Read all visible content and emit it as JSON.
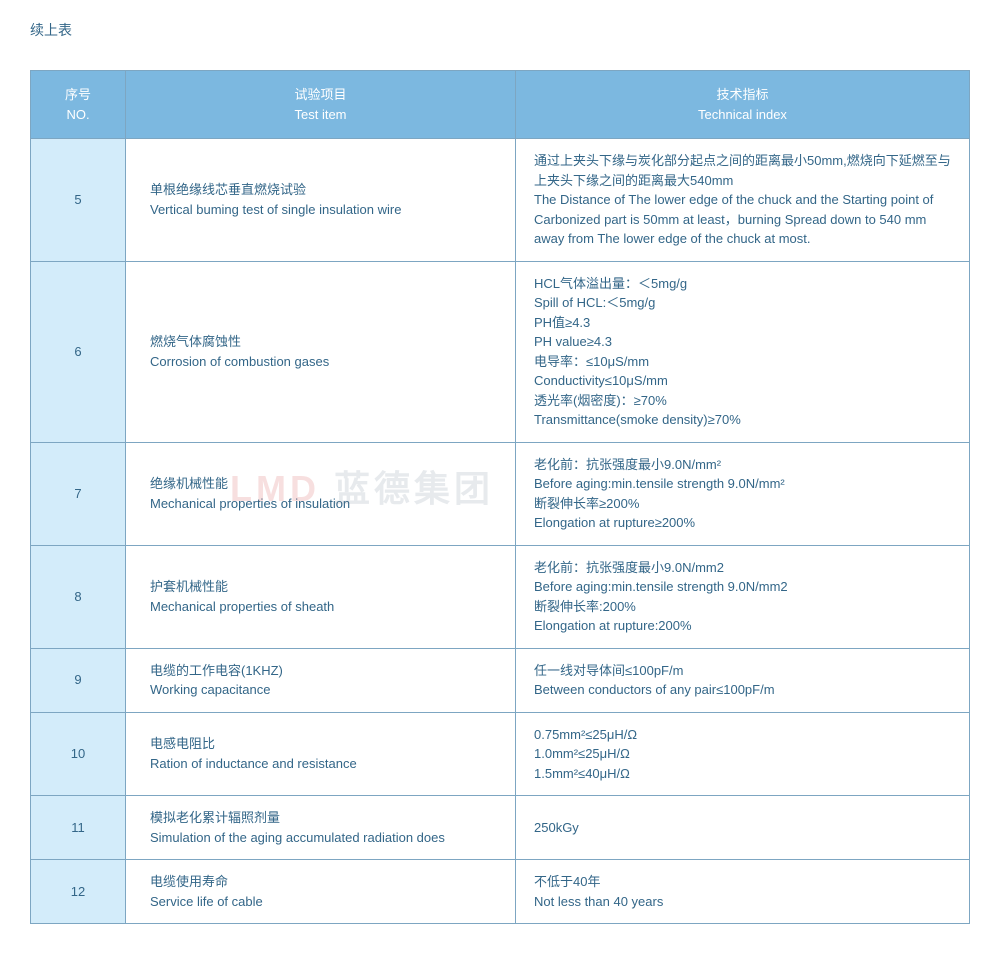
{
  "caption": "续上表",
  "watermark_red": "LMD",
  "watermark_gray": "蓝德集团",
  "headers": {
    "no_cn": "序号",
    "no_en": "NO.",
    "item_cn": "试验项目",
    "item_en": "Test item",
    "index_cn": "技术指标",
    "index_en": "Technical index"
  },
  "rows": [
    {
      "no": "5",
      "item": "单根绝缘线芯垂直燃烧试验\nVertical buming test of single insulation wire",
      "index": "通过上夹头下缘与炭化部分起点之间的距离最小50mm,燃烧向下延燃至与上夹头下缘之间的距离最大540mm\nThe Distance of The lower edge of the chuck and the Starting point of Carbonized part is 50mm at least，burning Spread down to 540 mm away from The lower edge of the chuck at most."
    },
    {
      "no": "6",
      "item": "燃烧气体腐蚀性\nCorrosion of combustion gases",
      "index": "HCL气体溢出量：＜5mg/g\nSpill of HCL:＜5mg/g\nPH值≥4.3\nPH value≥4.3\n 电导率：≤10μS/mm\nConductivity≤10μS/mm\n透光率(烟密度)：≥70%\nTransmittance(smoke density)≥70%"
    },
    {
      "no": "7",
      "item": "绝缘机械性能\nMechanical properties of insulation",
      "index": "老化前：抗张强度最小9.0N/mm²\nBefore aging:min.tensile strength 9.0N/mm²\n断裂伸长率≥200%\nElongation at rupture≥200%"
    },
    {
      "no": "8",
      "item": "护套机械性能\nMechanical properties of sheath",
      "index": "老化前：抗张强度最小9.0N/mm2\nBefore aging:min.tensile strength 9.0N/mm2\n断裂伸长率:200%\nElongation at rupture:200%"
    },
    {
      "no": "9",
      "item": "电缆的工作电容(1KHZ)\nWorking capacitance",
      "index": "任一线对导体间≤100pF/m\nBetween conductors of any pair≤100pF/m"
    },
    {
      "no": "10",
      "item": "电感电阻比\nRation of inductance and resistance",
      "index": "0.75mm²≤25μH/Ω\n1.0mm²≤25μH/Ω\n1.5mm²≤40μH/Ω"
    },
    {
      "no": "11",
      "item": "模拟老化累计辐照剂量\nSimulation of the aging accumulated radiation does",
      "index": "250kGy"
    },
    {
      "no": "12",
      "item": "电缆使用寿命\nService life of cable",
      "index": "不低于40年\nNot less than 40 years"
    }
  ]
}
